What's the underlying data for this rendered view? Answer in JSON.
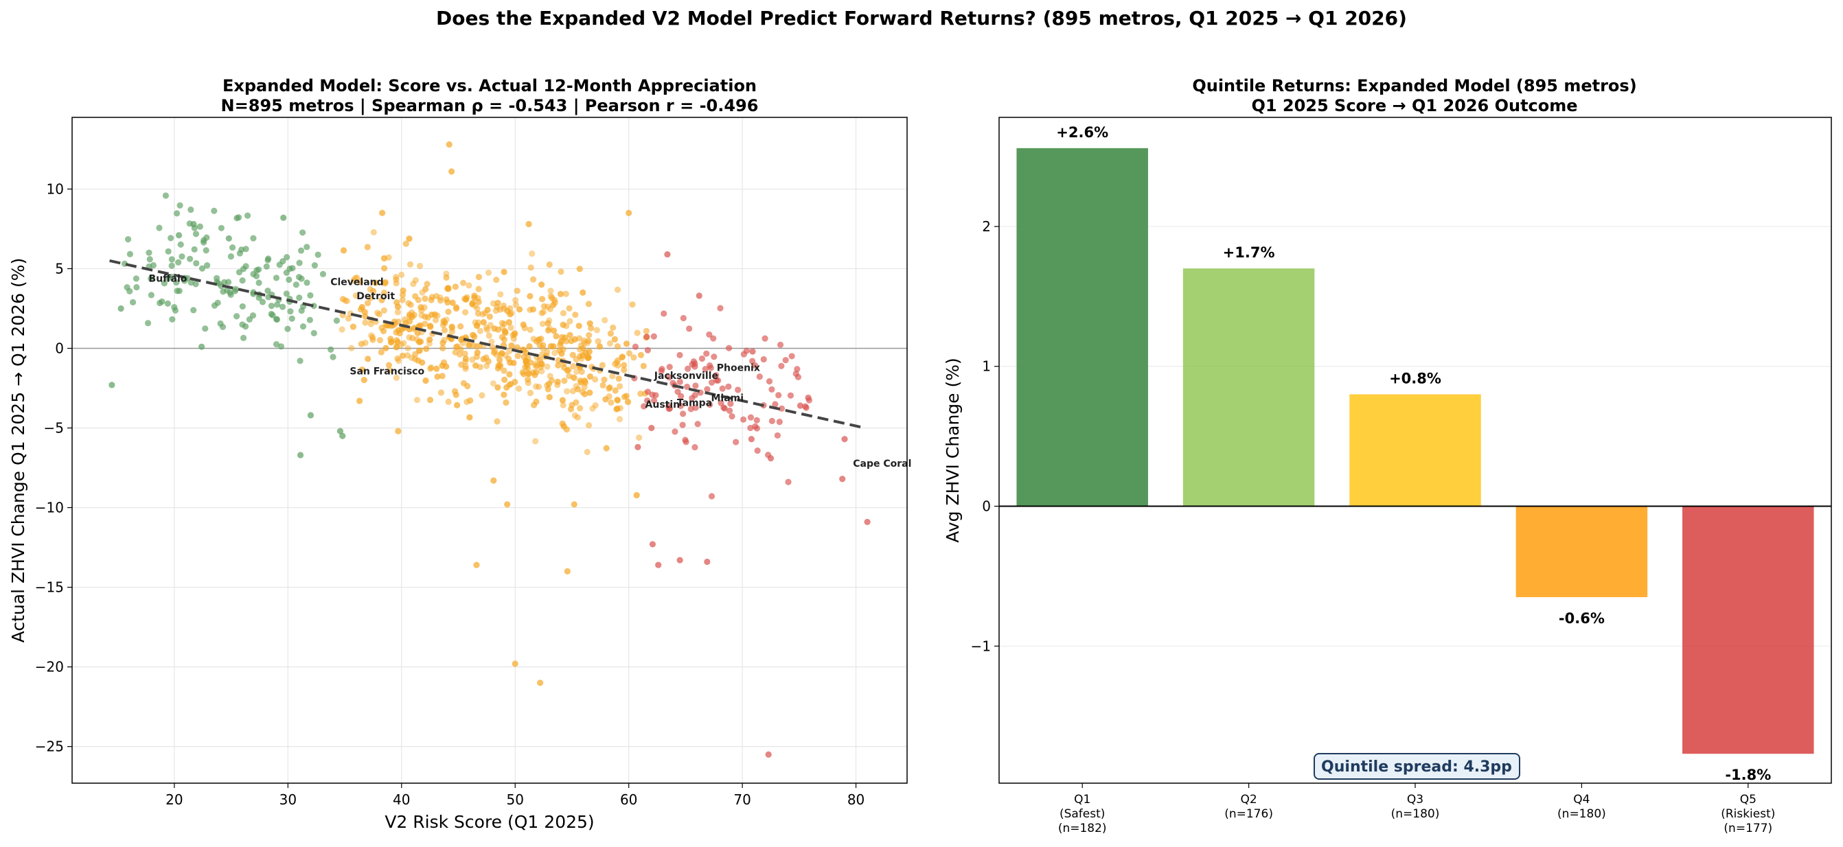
{
  "figure": {
    "suptitle": "Does the Expanded V2 Model Predict Forward Returns? (895 metros, Q1 2025 → Q1 2026)"
  },
  "colors": {
    "green": "#5a9e5f",
    "orange": "#f5a623",
    "red": "#d9534f",
    "q1": "#3f8a44",
    "q2": "#8bc34a",
    "q3": "#ffc107",
    "q4": "#ff9800",
    "q5": "#d32f2f",
    "trend": "#444444",
    "spread_box_bg": "#e8f0f8",
    "spread_text": "#1f3b5e"
  },
  "chart_data": [
    {
      "type": "scatter",
      "title": "Expanded Model: Score vs. Actual 12-Month Appreciation",
      "subtitle": "N=895 metros | Spearman ρ = -0.543 | Pearson r = -0.496",
      "xlabel": "V2 Risk Score (Q1 2025)",
      "ylabel": "Actual ZHVI Change Q1 2025 → Q1 2026 (%)",
      "xlim": [
        11,
        84.5
      ],
      "ylim": [
        -27.3,
        14.5
      ],
      "xticks": [
        20,
        30,
        40,
        50,
        60,
        70,
        80
      ],
      "yticks": [
        10,
        5,
        0,
        -5,
        -10,
        -15,
        -20,
        -25
      ],
      "grid": true,
      "trendline": {
        "x": [
          14.3,
          80.8
        ],
        "y": [
          5.5,
          -5.0
        ]
      },
      "zero_line": 0,
      "labeled_points": [
        {
          "name": "Buffalo",
          "x": 17.5,
          "y": 4.0
        },
        {
          "name": "Cleveland",
          "x": 33.5,
          "y": 3.8
        },
        {
          "name": "Detroit",
          "x": 35.8,
          "y": 2.9
        },
        {
          "name": "San Francisco",
          "x": 35.2,
          "y": -1.8
        },
        {
          "name": "Jacksonville",
          "x": 62.0,
          "y": -2.1
        },
        {
          "name": "Phoenix",
          "x": 67.5,
          "y": -1.6
        },
        {
          "name": "Miami",
          "x": 67.0,
          "y": -3.5
        },
        {
          "name": "Austin",
          "x": 61.2,
          "y": -3.9
        },
        {
          "name": "Tampa",
          "x": 64.0,
          "y": -3.8
        },
        {
          "name": "Cape Coral",
          "x": 79.5,
          "y": -7.6
        }
      ],
      "highlight_points": [
        {
          "group": "orange",
          "x": 44.2,
          "y": 12.8
        },
        {
          "group": "orange",
          "x": 44.4,
          "y": 11.1
        },
        {
          "group": "orange",
          "x": 38.3,
          "y": 8.5
        },
        {
          "group": "orange",
          "x": 60.0,
          "y": 8.5
        },
        {
          "group": "orange",
          "x": 51.2,
          "y": 7.8
        },
        {
          "group": "green",
          "x": 29.6,
          "y": 8.2
        },
        {
          "group": "green",
          "x": 21.7,
          "y": 7.8
        },
        {
          "group": "green",
          "x": 20.4,
          "y": 7.1
        },
        {
          "group": "green",
          "x": 24.8,
          "y": 6.9
        },
        {
          "group": "green",
          "x": 14.5,
          "y": -2.3
        },
        {
          "group": "green",
          "x": 31.1,
          "y": -6.7
        },
        {
          "group": "green",
          "x": 32.0,
          "y": -4.2
        },
        {
          "group": "green",
          "x": 34.6,
          "y": -5.2
        },
        {
          "group": "green",
          "x": 34.8,
          "y": -5.5
        },
        {
          "group": "green",
          "x": 15.3,
          "y": 2.5
        },
        {
          "group": "green",
          "x": 22.4,
          "y": 0.1
        },
        {
          "group": "orange",
          "x": 50.0,
          "y": -19.8
        },
        {
          "group": "orange",
          "x": 52.2,
          "y": -21.0
        },
        {
          "group": "orange",
          "x": 54.6,
          "y": -14.0
        },
        {
          "group": "orange",
          "x": 46.6,
          "y": -13.6
        },
        {
          "group": "orange",
          "x": 49.3,
          "y": -9.8
        },
        {
          "group": "orange",
          "x": 55.2,
          "y": -9.8
        },
        {
          "group": "orange",
          "x": 48.1,
          "y": -8.3
        },
        {
          "group": "orange",
          "x": 39.7,
          "y": -5.2
        },
        {
          "group": "orange",
          "x": 36.3,
          "y": -3.3
        },
        {
          "group": "red",
          "x": 72.3,
          "y": -25.5
        },
        {
          "group": "red",
          "x": 62.1,
          "y": -12.3
        },
        {
          "group": "red",
          "x": 62.6,
          "y": -13.6
        },
        {
          "group": "red",
          "x": 64.5,
          "y": -13.3
        },
        {
          "group": "red",
          "x": 66.9,
          "y": -13.4
        },
        {
          "group": "red",
          "x": 72.5,
          "y": -6.9
        },
        {
          "group": "red",
          "x": 70.8,
          "y": -5.7
        },
        {
          "group": "red",
          "x": 79.0,
          "y": -5.7
        },
        {
          "group": "red",
          "x": 78.8,
          "y": -8.2
        },
        {
          "group": "red",
          "x": 81.0,
          "y": -10.9
        },
        {
          "group": "red",
          "x": 75.1,
          "y": -3.6
        },
        {
          "group": "red",
          "x": 75.8,
          "y": -3.1
        },
        {
          "group": "red",
          "x": 70.9,
          "y": -0.2
        },
        {
          "group": "red",
          "x": 66.2,
          "y": 3.3
        },
        {
          "group": "red",
          "x": 63.4,
          "y": 5.9
        },
        {
          "group": "red",
          "x": 62.0,
          "y": -5.0
        },
        {
          "group": "red",
          "x": 60.8,
          "y": -6.2
        }
      ],
      "cloud_points": [
        {
          "group": "green",
          "x_range": [
            15,
            35
          ],
          "count": 160,
          "seed": 11
        },
        {
          "group": "orange",
          "x_range": [
            34,
            62
          ],
          "count": 580,
          "seed": 23
        },
        {
          "group": "red",
          "x_range": [
            60,
            76
          ],
          "count": 110,
          "seed": 37
        }
      ]
    },
    {
      "type": "bar",
      "title": "Quintile Returns: Expanded Model (895 metros)",
      "subtitle": "Q1 2025 Score → Q1 2026 Outcome",
      "ylabel": "Avg ZHVI Change (%)",
      "ylim": [
        -1.98,
        2.78
      ],
      "yticks": [
        2,
        1,
        0,
        -1
      ],
      "categories": [
        {
          "label": "Q1",
          "sub": "(Safest)",
          "n": "(n=182)"
        },
        {
          "label": "Q2",
          "sub": "",
          "n": "(n=176)"
        },
        {
          "label": "Q3",
          "sub": "",
          "n": "(n=180)"
        },
        {
          "label": "Q4",
          "sub": "",
          "n": "(n=180)"
        },
        {
          "label": "Q5",
          "sub": "(Riskiest)",
          "n": "(n=177)"
        }
      ],
      "values": [
        2.56,
        1.7,
        0.8,
        -0.65,
        -1.77
      ],
      "value_labels": [
        "+2.6%",
        "+1.7%",
        "+0.8%",
        "-0.6%",
        "-1.8%"
      ],
      "annotation": "Quintile spread: 4.3pp"
    }
  ]
}
